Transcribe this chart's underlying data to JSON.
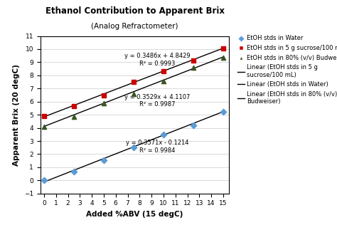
{
  "title": "Ethanol Contribution to Apparent Brix",
  "subtitle": "(Analog Refractometer)",
  "xlabel": "Added %ABV (15 degC)",
  "ylabel": "Apparent Brix (20 degC)",
  "xlim": [
    -0.3,
    15.5
  ],
  "ylim": [
    -1,
    11
  ],
  "xticks": [
    0,
    1,
    2,
    3,
    4,
    5,
    6,
    7,
    8,
    9,
    10,
    11,
    12,
    13,
    14,
    15
  ],
  "yticks": [
    -1,
    0,
    1,
    2,
    3,
    4,
    5,
    6,
    7,
    8,
    9,
    10,
    11
  ],
  "water_x": [
    0,
    2.5,
    5,
    7.5,
    10,
    12.5,
    15
  ],
  "water_y": [
    0.0,
    0.65,
    1.55,
    2.5,
    3.5,
    4.2,
    5.2
  ],
  "water_eq": "y = 0.3571x - 0.1214",
  "water_r2": "R² = 0.9984",
  "water_slope": 0.3571,
  "water_intercept": -0.1214,
  "sucrose_x": [
    0,
    2.5,
    5,
    7.5,
    10,
    12.5,
    15
  ],
  "sucrose_y": [
    4.9,
    5.65,
    6.5,
    7.5,
    8.3,
    9.15,
    10.05
  ],
  "sucrose_eq": "y = 0.3486x + 4.8429",
  "sucrose_r2": "R² = 0.9993",
  "sucrose_slope": 0.3486,
  "sucrose_intercept": 4.8429,
  "bud_x": [
    0,
    2.5,
    5,
    7.5,
    10,
    12.5,
    15
  ],
  "bud_y": [
    4.1,
    4.85,
    5.9,
    6.6,
    7.55,
    8.6,
    9.35
  ],
  "bud_eq": "y = 0.3529x + 4.1107",
  "bud_r2": "R² = 0.9987",
  "bud_slope": 0.3529,
  "bud_intercept": 4.1107,
  "water_color": "#5B9BD5",
  "sucrose_color": "#CC0000",
  "bud_color": "#375623",
  "line_color": "#000000",
  "eq_sucrose_x": 9.5,
  "eq_sucrose_y": 8.65,
  "eq_bud_x": 9.5,
  "eq_bud_y": 5.55,
  "eq_water_x": 9.5,
  "eq_water_y": 2.05,
  "title_fontsize": 8.5,
  "subtitle_fontsize": 7.5,
  "label_fontsize": 7.5,
  "tick_fontsize": 6.5,
  "eq_fontsize": 6.0,
  "legend_fontsize": 6.0
}
